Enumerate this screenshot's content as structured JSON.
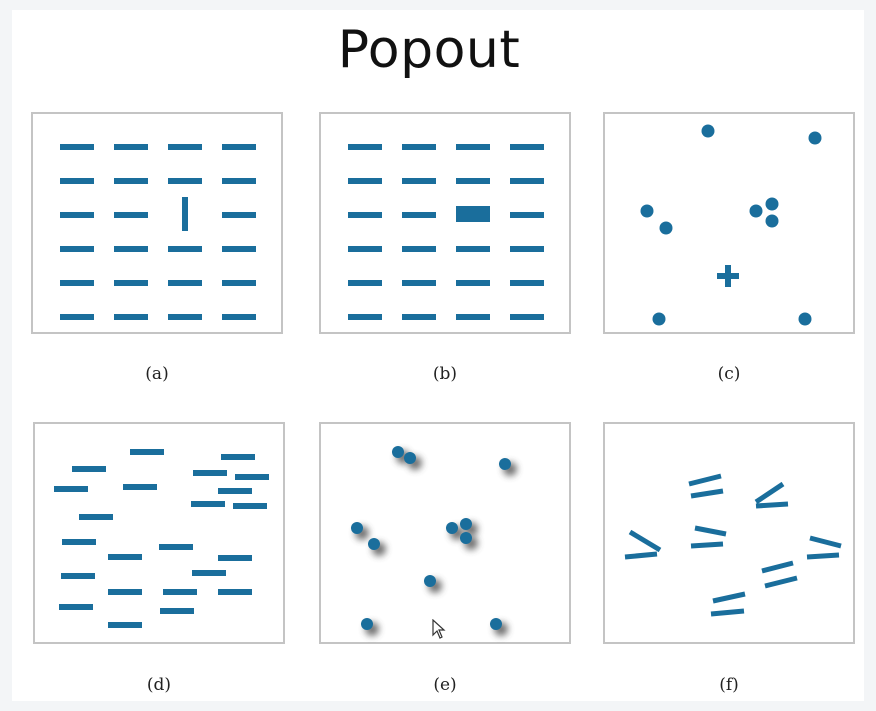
{
  "title": "Popout",
  "accent_color": "#1a6e9c",
  "panels": [
    {
      "id": "a",
      "caption": "(a)"
    },
    {
      "id": "b",
      "caption": "(b)"
    },
    {
      "id": "c",
      "caption": "(c)"
    },
    {
      "id": "d",
      "caption": "(d)"
    },
    {
      "id": "e",
      "caption": "(e)"
    },
    {
      "id": "f",
      "caption": "(f)"
    }
  ],
  "cursor_icon": "mouse-pointer-icon"
}
